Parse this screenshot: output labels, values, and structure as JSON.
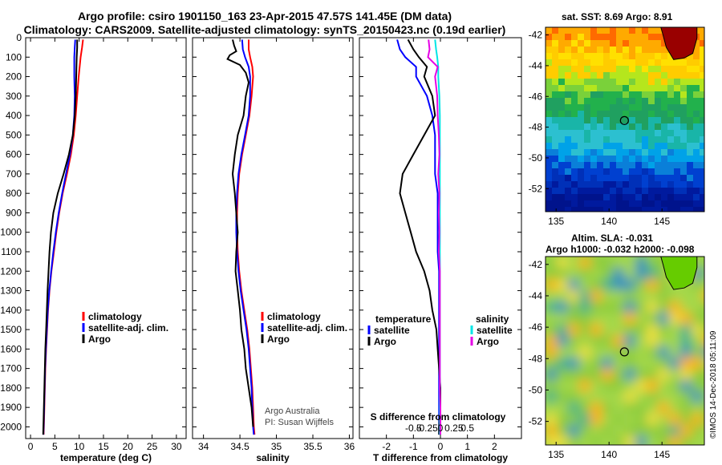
{
  "header": {
    "title_line1": "Argo profile: csiro 1901150_163 23-Apr-2015 47.57S 141.45E (DM data)",
    "title_line2": "Climatology: CARS2009. Satellite-adjusted climatology: synTS_20150423.nc (0.19d earlier)"
  },
  "credits": {
    "line1": "Argo Australia",
    "line2": "PI: Susan Wijffels",
    "imos": "©IMOS 14-Dec-2018 05:11:09"
  },
  "colors": {
    "climatology": "#ff0000",
    "satellite": "#0000ff",
    "argo": "#000000",
    "salinity_satellite": "#00e5e5",
    "salinity_argo": "#e600e6"
  },
  "chart_data": [
    {
      "type": "line",
      "xlabel": "temperature (deg C)",
      "xticks": [
        "0",
        "5",
        "10",
        "15",
        "20",
        "25",
        "30"
      ],
      "yticks": [
        "0",
        "100",
        "200",
        "300",
        "400",
        "500",
        "600",
        "700",
        "800",
        "900",
        "1000",
        "1100",
        "1200",
        "1300",
        "1400",
        "1500",
        "1600",
        "1700",
        "1800",
        "1900",
        "2000"
      ],
      "xlim": [
        -1,
        32
      ],
      "ylim": [
        2060,
        0
      ],
      "legend": [
        "climatology",
        "satellite-adj. clim.",
        "Argo"
      ],
      "series": [
        {
          "name": "climatology",
          "color": "#ff0000",
          "depth": [
            10,
            50,
            100,
            200,
            300,
            400,
            500,
            600,
            700,
            800,
            900,
            1000,
            1100,
            1200,
            1300,
            1400,
            1500,
            1600,
            1700,
            1800,
            1900,
            2000,
            2040
          ],
          "values": [
            10.8,
            10.6,
            10.3,
            9.9,
            9.6,
            9.3,
            8.9,
            8.3,
            7.5,
            6.6,
            5.9,
            5.3,
            4.8,
            4.3,
            3.9,
            3.6,
            3.4,
            3.2,
            3.05,
            2.95,
            2.85,
            2.75,
            2.7
          ]
        },
        {
          "name": "satellite-adj. clim.",
          "color": "#0000ff",
          "depth": [
            10,
            50,
            100,
            200,
            300,
            400,
            500,
            600,
            700,
            800,
            900,
            1000,
            1100,
            1200,
            1300,
            1400,
            1500,
            1600,
            1700,
            1800,
            1900,
            2000,
            2040
          ],
          "values": [
            9.2,
            9.1,
            9.0,
            9.0,
            9.1,
            9.0,
            8.7,
            8.1,
            7.3,
            6.5,
            5.8,
            5.2,
            4.7,
            4.25,
            3.85,
            3.55,
            3.35,
            3.15,
            3.0,
            2.9,
            2.8,
            2.7,
            2.65
          ]
        },
        {
          "name": "Argo",
          "color": "#000000",
          "depth": [
            10,
            50,
            100,
            200,
            300,
            400,
            500,
            600,
            700,
            800,
            900,
            1000,
            1100,
            1200,
            1300,
            1400,
            1500,
            1600,
            1700,
            1800,
            1900,
            2000,
            2040
          ],
          "values": [
            9.6,
            9.6,
            9.5,
            9.4,
            9.3,
            9.1,
            8.7,
            7.9,
            6.8,
            5.6,
            4.7,
            4.2,
            3.9,
            3.7,
            3.5,
            3.35,
            3.2,
            3.05,
            2.95,
            2.85,
            2.75,
            2.65,
            2.6
          ]
        }
      ]
    },
    {
      "type": "line",
      "xlabel": "salinity",
      "xticks": [
        "34",
        "34.5",
        "35",
        "35.5",
        "36"
      ],
      "xlim": [
        33.85,
        36.05
      ],
      "ylim": [
        2060,
        0
      ],
      "legend": [
        "climatology",
        "satellite-adj. clim.",
        "Argo"
      ],
      "series": [
        {
          "name": "climatology",
          "color": "#ff0000",
          "depth": [
            10,
            60,
            100,
            150,
            200,
            300,
            400,
            500,
            600,
            700,
            800,
            900,
            1000,
            1100,
            1200,
            1300,
            1400,
            1500,
            1600,
            1700,
            1800,
            1900,
            2000,
            2040
          ],
          "values": [
            34.62,
            34.62,
            34.64,
            34.67,
            34.68,
            34.66,
            34.63,
            34.58,
            34.53,
            34.49,
            34.47,
            34.46,
            34.46,
            34.47,
            34.49,
            34.52,
            34.56,
            34.6,
            34.63,
            34.65,
            34.67,
            34.68,
            34.69,
            34.7
          ]
        },
        {
          "name": "satellite-adj. clim.",
          "color": "#0000ff",
          "depth": [
            10,
            60,
            100,
            150,
            200,
            300,
            400,
            500,
            600,
            700,
            800,
            900,
            1000,
            1100,
            1200,
            1300,
            1400,
            1500,
            1600,
            1700,
            1800,
            1900,
            2000,
            2040
          ],
          "values": [
            34.53,
            34.54,
            34.57,
            34.62,
            34.64,
            34.64,
            34.62,
            34.57,
            34.52,
            34.48,
            34.46,
            34.45,
            34.45,
            34.46,
            34.48,
            34.51,
            34.55,
            34.59,
            34.62,
            34.64,
            34.66,
            34.67,
            34.68,
            34.69
          ]
        },
        {
          "name": "Argo",
          "color": "#000000",
          "depth": [
            10,
            40,
            70,
            90,
            110,
            140,
            180,
            230,
            300,
            400,
            500,
            600,
            700,
            800,
            900,
            1000,
            1100,
            1200,
            1300,
            1400,
            1500,
            1600,
            1700,
            1800,
            1900,
            2000
          ],
          "values": [
            34.4,
            34.42,
            34.45,
            34.36,
            34.33,
            34.5,
            34.58,
            34.62,
            34.58,
            34.55,
            34.47,
            34.43,
            34.4,
            34.43,
            34.45,
            34.47,
            34.45,
            34.44,
            34.47,
            34.5,
            34.52,
            34.56,
            34.58,
            34.62,
            34.66,
            34.68
          ]
        }
      ]
    },
    {
      "type": "line",
      "xlabel": "T difference from climatology",
      "s_axis_label": "S difference from climatology",
      "xticks": [
        "-2",
        "-1",
        "0",
        "1",
        "2"
      ],
      "sticks": [
        "-0.5",
        "-0.25",
        "0",
        "0.25",
        "0.5"
      ],
      "xlim": [
        -3,
        3
      ],
      "ylim": [
        2060,
        0
      ],
      "legend_left_title": "temperature",
      "legend_right_title": "salinity",
      "legend": [
        "satellite",
        "Argo"
      ],
      "series": [
        {
          "name": "satellite",
          "variable": "temperature",
          "color": "#0000ff",
          "depth": [
            10,
            60,
            100,
            150,
            200,
            300,
            400,
            500,
            600,
            700,
            800,
            900,
            1000,
            1100,
            1200,
            1300,
            1400,
            1500,
            1600,
            1700,
            1800,
            1900,
            2000,
            2040
          ],
          "values": [
            -1.6,
            -1.5,
            -1.3,
            -0.9,
            -0.9,
            -0.5,
            -0.3,
            -0.2,
            -0.2,
            -0.2,
            -0.1,
            -0.1,
            -0.1,
            -0.1,
            -0.05,
            -0.05,
            -0.05,
            -0.05,
            -0.05,
            -0.05,
            -0.05,
            -0.05,
            -0.05,
            -0.05
          ]
        },
        {
          "name": "Argo",
          "variable": "temperature",
          "color": "#000000",
          "depth": [
            10,
            60,
            100,
            150,
            200,
            300,
            400,
            500,
            600,
            700,
            800,
            900,
            1000,
            1100,
            1200,
            1300,
            1400,
            1500,
            1600,
            1700,
            1800,
            1900,
            2000,
            2040
          ],
          "values": [
            -1.2,
            -1.0,
            -0.8,
            -0.5,
            -0.6,
            -0.3,
            -0.2,
            -0.6,
            -1.0,
            -1.4,
            -1.5,
            -1.3,
            -1.1,
            -0.9,
            -0.6,
            -0.4,
            -0.3,
            -0.15,
            -0.1,
            -0.05,
            0.0,
            0.0,
            -0.05,
            -0.05
          ]
        },
        {
          "name": "satellite",
          "variable": "salinity",
          "color": "#00e5e5",
          "depth": [
            10,
            60,
            100,
            150,
            200,
            300,
            400,
            500,
            600,
            700,
            800,
            900,
            1000,
            1100,
            1200,
            1300,
            1400,
            1500,
            1600,
            1700,
            1800,
            1900,
            2000,
            2040
          ],
          "values": [
            -0.1,
            -0.08,
            -0.06,
            -0.04,
            -0.04,
            -0.02,
            -0.01,
            -0.01,
            -0.01,
            -0.01,
            -0.01,
            -0.01,
            -0.01,
            -0.01,
            -0.01,
            -0.01,
            -0.01,
            -0.01,
            -0.01,
            -0.01,
            -0.01,
            -0.01,
            -0.01,
            -0.01
          ]
        },
        {
          "name": "Argo",
          "variable": "salinity",
          "color": "#e600e6",
          "depth": [
            10,
            60,
            100,
            150,
            200,
            300,
            400,
            500,
            600,
            700,
            800,
            900,
            1000,
            1100,
            1200,
            1300,
            1400,
            1500,
            1600,
            1700,
            1800,
            1900,
            2000,
            2040
          ],
          "values": [
            -0.22,
            -0.2,
            -0.23,
            -0.05,
            -0.1,
            -0.06,
            -0.05,
            -0.03,
            -0.02,
            -0.04,
            -0.02,
            -0.03,
            -0.02,
            -0.03,
            -0.01,
            -0.01,
            -0.01,
            -0.01,
            -0.01,
            -0.01,
            -0.01,
            0.0,
            0.0,
            0.0
          ]
        }
      ]
    },
    {
      "type": "heatmap",
      "title": "sat. SST: 8.69 Argo: 8.91",
      "xticks": [
        "135",
        "140",
        "145"
      ],
      "yticks": [
        "-42",
        "-44",
        "-46",
        "-48",
        "-50",
        "-52"
      ],
      "xlim": [
        134,
        149
      ],
      "ylim": [
        -53.5,
        -41.5
      ],
      "marker": {
        "lon": 141.45,
        "lat": -47.57
      }
    },
    {
      "type": "heatmap",
      "title_line1": "Altim. SLA: -0.031",
      "title_line2": "Argo h1000: -0.032 h2000: -0.098",
      "xticks": [
        "135",
        "140",
        "145"
      ],
      "yticks": [
        "-42",
        "-44",
        "-46",
        "-48",
        "-50",
        "-52"
      ],
      "xlim": [
        134,
        149
      ],
      "ylim": [
        -53.5,
        -41.5
      ],
      "marker": {
        "lon": 141.45,
        "lat": -47.57
      }
    }
  ]
}
